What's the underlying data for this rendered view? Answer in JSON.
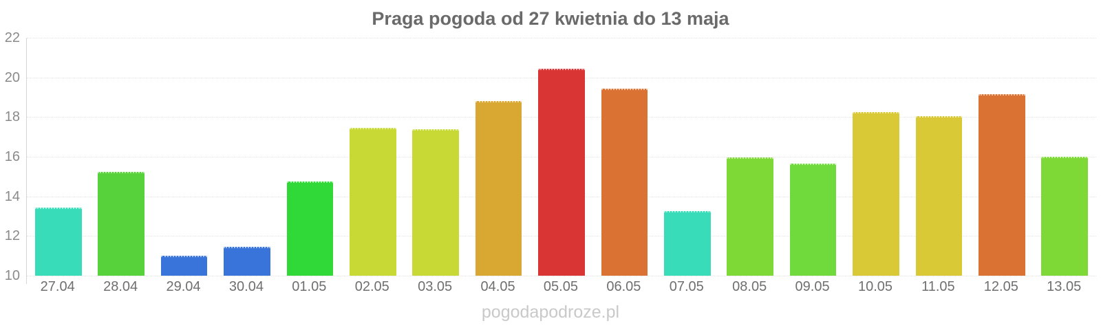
{
  "chart": {
    "title": "Praga pogoda od 27 kwietnia do 13 maja",
    "watermark": "pogodapodroze.pl"
  },
  "chart_data": {
    "type": "bar",
    "title": "Praga pogoda od 27 kwietnia do 13 maja",
    "xlabel": "",
    "ylabel": "",
    "categories": [
      "27.04",
      "28.04",
      "29.04",
      "30.04",
      "01.05",
      "02.05",
      "03.05",
      "04.05",
      "05.05",
      "06.05",
      "07.05",
      "08.05",
      "09.05",
      "10.05",
      "11.05",
      "12.05",
      "13.05"
    ],
    "values": [
      13.45,
      15.25,
      11.0,
      11.45,
      14.75,
      17.45,
      17.4,
      18.8,
      20.45,
      19.45,
      13.25,
      15.95,
      15.65,
      18.25,
      18.05,
      19.15,
      16.0
    ],
    "bar_colors": [
      "#38dcb8",
      "#57d23a",
      "#3874d9",
      "#3874d9",
      "#30d938",
      "#c8d936",
      "#c8d936",
      "#d9a832",
      "#d93535",
      "#d97232",
      "#38dcb8",
      "#7ed936",
      "#70d93c",
      "#d9c936",
      "#d9c936",
      "#d97232",
      "#7ed936"
    ],
    "ylim": [
      10,
      22
    ],
    "yticks": [
      10,
      12,
      14,
      16,
      18,
      20,
      22
    ],
    "grid": "horizontal-dotted",
    "legend": "none",
    "watermark": "pogodapodroze.pl",
    "title_color": "#6a6a6a",
    "axis_label_color": "#8a8a8a",
    "x_label_color": "#6f6f6f",
    "watermark_color": "#c9c9c9",
    "axis_line_color": "#d6d6d6",
    "gridline_color": "#e5e5e5"
  }
}
